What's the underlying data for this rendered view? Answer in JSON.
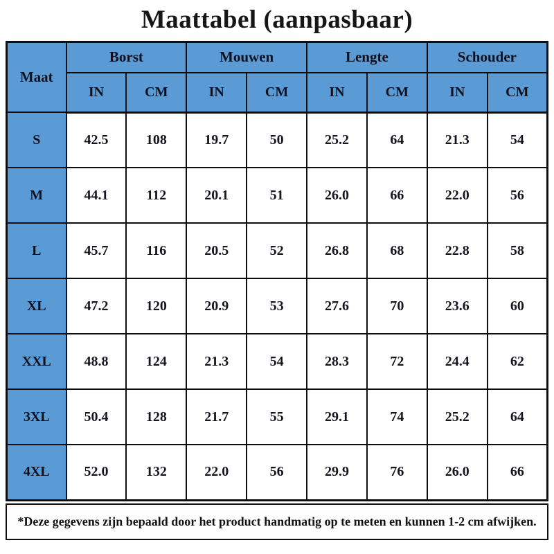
{
  "title": "Maattabel (aanpasbaar)",
  "chart_data": {
    "type": "table",
    "title": "Maattabel (aanpasbaar)",
    "corner_label": "Maat",
    "groups": [
      "Borst",
      "Mouwen",
      "Lengte",
      "Schouder"
    ],
    "unit_labels": [
      "IN",
      "CM"
    ],
    "columns": [
      "Maat",
      "Borst IN",
      "Borst CM",
      "Mouwen IN",
      "Mouwen CM",
      "Lengte IN",
      "Lengte CM",
      "Schouder IN",
      "Schouder CM"
    ],
    "rows": [
      {
        "size": "S",
        "values": [
          "42.5",
          "108",
          "19.7",
          "50",
          "25.2",
          "64",
          "21.3",
          "54"
        ]
      },
      {
        "size": "M",
        "values": [
          "44.1",
          "112",
          "20.1",
          "51",
          "26.0",
          "66",
          "22.0",
          "56"
        ]
      },
      {
        "size": "L",
        "values": [
          "45.7",
          "116",
          "20.5",
          "52",
          "26.8",
          "68",
          "22.8",
          "58"
        ]
      },
      {
        "size": "XL",
        "values": [
          "47.2",
          "120",
          "20.9",
          "53",
          "27.6",
          "70",
          "23.6",
          "60"
        ]
      },
      {
        "size": "XXL",
        "values": [
          "48.8",
          "124",
          "21.3",
          "54",
          "28.3",
          "72",
          "24.4",
          "62"
        ]
      },
      {
        "size": "3XL",
        "values": [
          "50.4",
          "128",
          "21.7",
          "55",
          "29.1",
          "74",
          "25.2",
          "64"
        ]
      },
      {
        "size": "4XL",
        "values": [
          "52.0",
          "132",
          "22.0",
          "56",
          "29.9",
          "76",
          "26.0",
          "66"
        ]
      }
    ],
    "footnote": "*Deze gegevens zijn bepaald door het product handmatig op te meten en kunnen 1-2 cm afwijken."
  },
  "colors": {
    "header_blue": "#5B9BD5",
    "border_black": "#0e0e0e",
    "text_dark": "#15151f",
    "background": "#ffffff"
  }
}
